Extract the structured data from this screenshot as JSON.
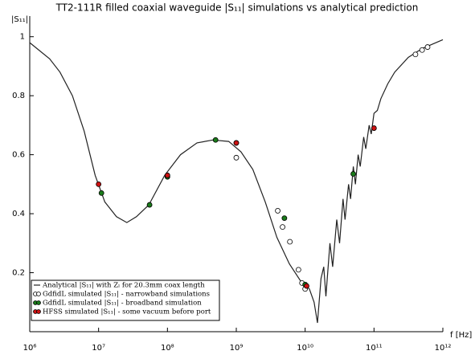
{
  "chart_data": {
    "type": "line",
    "title": "TT2-111R filled coaxial waveguide |S₁₁| simulations vs analytical prediction",
    "y_label": "|S₁₁|",
    "x_label": "f [Hz]",
    "xlog": true,
    "xlim": [
      1000000.0,
      1000000000000.0
    ],
    "ylim": [
      0,
      1.07
    ],
    "xticks": [
      {
        "value": 1000000.0,
        "label": "10⁶"
      },
      {
        "value": 10000000.0,
        "label": "10⁷"
      },
      {
        "value": 100000000.0,
        "label": "10⁸"
      },
      {
        "value": 1000000000.0,
        "label": "10⁹"
      },
      {
        "value": 10000000000.0,
        "label": "10¹⁰"
      },
      {
        "value": 100000000000.0,
        "label": "10¹¹"
      },
      {
        "value": 1000000000000.0,
        "label": "10¹²"
      }
    ],
    "yticks": [
      0.2,
      0.4,
      0.6,
      0.8,
      1
    ],
    "legend": "lower left",
    "series": [
      {
        "name": "Analytical |S₁₁| with Zₗ for 20.3mm coax length",
        "kind": "line",
        "color": "#222222",
        "x": [
          1000000.0,
          1950000.0,
          2750000.0,
          4170000.0,
          6170000.0,
          8910000.0,
          12300000.0,
          18200000.0,
          25700000.0,
          35500000.0,
          53700000.0,
          91200000.0,
          155000000.0,
          269000000.0,
          457000000.0,
          776000000.0,
          1170000000.0,
          1740000000.0,
          2630000000.0,
          3890000000.0,
          5890000000.0,
          8710000000.0,
          11500000000.0,
          13500000000.0,
          15100000000.0,
          17000000000.0,
          18600000000.0,
          20000000000.0,
          22900000000.0,
          25100000000.0,
          28800000000.0,
          31600000000.0,
          35500000000.0,
          38000000000.0,
          42700000000.0,
          45700000000.0,
          50100000000.0,
          53700000000.0,
          58900000000.0,
          63100000000.0,
          70800000000.0,
          75900000000.0,
          85100000000.0,
          91200000000.0,
          100000000000.0,
          112000000000.0,
          126000000000.0,
          158000000000.0,
          200000000000.0,
          316000000000.0,
          501000000000.0,
          1000000000000.0
        ],
        "values": [
          0.98,
          0.925,
          0.88,
          0.8,
          0.68,
          0.53,
          0.44,
          0.39,
          0.37,
          0.39,
          0.43,
          0.53,
          0.6,
          0.64,
          0.65,
          0.645,
          0.61,
          0.55,
          0.44,
          0.32,
          0.23,
          0.17,
          0.145,
          0.1,
          0.03,
          0.18,
          0.22,
          0.12,
          0.3,
          0.22,
          0.38,
          0.3,
          0.45,
          0.38,
          0.5,
          0.45,
          0.56,
          0.5,
          0.6,
          0.56,
          0.66,
          0.62,
          0.7,
          0.67,
          0.74,
          0.75,
          0.79,
          0.84,
          0.88,
          0.93,
          0.96,
          0.99
        ]
      },
      {
        "name": "GdfidL simulated |S₁₁| - narrowband simulations",
        "kind": "scatter",
        "color": "#ffffff",
        "x": [
          1000000000.0,
          4000000000.0,
          4700000000.0,
          6000000000.0,
          8000000000.0,
          9000000000.0,
          10000000000.0,
          400000000000.0,
          500000000000.0,
          600000000000.0
        ],
        "values": [
          0.59,
          0.41,
          0.355,
          0.305,
          0.21,
          0.165,
          0.145,
          0.94,
          0.955,
          0.965
        ]
      },
      {
        "name": "GdfidL simulated |S₁₁| - broadband simulation",
        "kind": "scatter",
        "color": "#1a7a1a",
        "x": [
          11000000.0,
          55000000.0,
          100000000.0,
          500000000.0,
          1000000000.0,
          5000000000.0,
          10000000000.0,
          50000000000.0
        ],
        "values": [
          0.47,
          0.43,
          0.525,
          0.65,
          0.64,
          0.385,
          0.16,
          0.535
        ]
      },
      {
        "name": "HFSS simulated |S₁₁| - some vacuum before port",
        "kind": "scatter",
        "color": "#cc1111",
        "x": [
          10000000.0,
          100000000.0,
          1000000000.0,
          10500000000.0,
          100000000000.0
        ],
        "values": [
          0.5,
          0.53,
          0.64,
          0.155,
          0.69
        ]
      }
    ]
  }
}
